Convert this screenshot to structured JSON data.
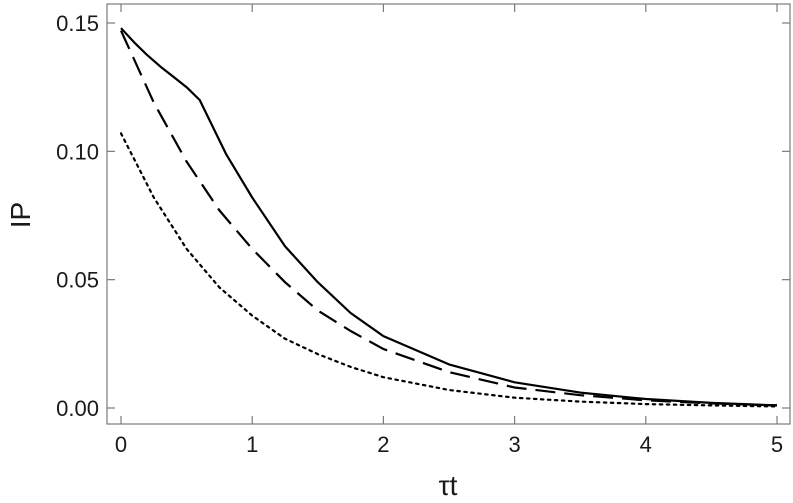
{
  "chart_data": {
    "type": "line",
    "title": "",
    "xlabel": "τt",
    "ylabel": "IP",
    "xlim": [
      0,
      5
    ],
    "ylim": [
      0,
      0.15
    ],
    "x_ticks": [
      "0",
      "1",
      "2",
      "3",
      "4",
      "5"
    ],
    "y_ticks": [
      "0.00",
      "0.05",
      "0.10",
      "0.15"
    ],
    "grid": false,
    "legend": "none",
    "series": [
      {
        "style": "solid",
        "x": [
          0,
          0.1,
          0.2,
          0.3,
          0.4,
          0.5,
          0.6,
          0.8,
          1.0,
          1.25,
          1.5,
          1.75,
          2.0,
          2.5,
          3.0,
          3.5,
          4.0,
          4.5,
          5.0
        ],
        "y": [
          0.148,
          0.1425,
          0.1375,
          0.133,
          0.129,
          0.125,
          0.12,
          0.099,
          0.082,
          0.063,
          0.049,
          0.037,
          0.028,
          0.017,
          0.01,
          0.006,
          0.0035,
          0.002,
          0.001
        ]
      },
      {
        "style": "dashed",
        "x": [
          0,
          0.25,
          0.5,
          0.75,
          1.0,
          1.25,
          1.5,
          1.75,
          2.0,
          2.5,
          3.0,
          3.5,
          4.0,
          4.5,
          5.0
        ],
        "y": [
          0.147,
          0.119,
          0.096,
          0.077,
          0.062,
          0.049,
          0.038,
          0.03,
          0.023,
          0.014,
          0.008,
          0.005,
          0.003,
          0.0018,
          0.001
        ]
      },
      {
        "style": "dotted",
        "x": [
          0,
          0.25,
          0.5,
          0.75,
          1.0,
          1.25,
          1.5,
          1.75,
          2.0,
          2.5,
          3.0,
          3.5,
          4.0,
          4.5,
          5.0
        ],
        "y": [
          0.107,
          0.082,
          0.062,
          0.047,
          0.036,
          0.027,
          0.021,
          0.016,
          0.012,
          0.007,
          0.004,
          0.0025,
          0.0015,
          0.001,
          0.0006
        ]
      }
    ],
    "colors": {
      "lines": "#000000",
      "frame": "#7a7a7a",
      "text": "#1a1a1a"
    }
  }
}
